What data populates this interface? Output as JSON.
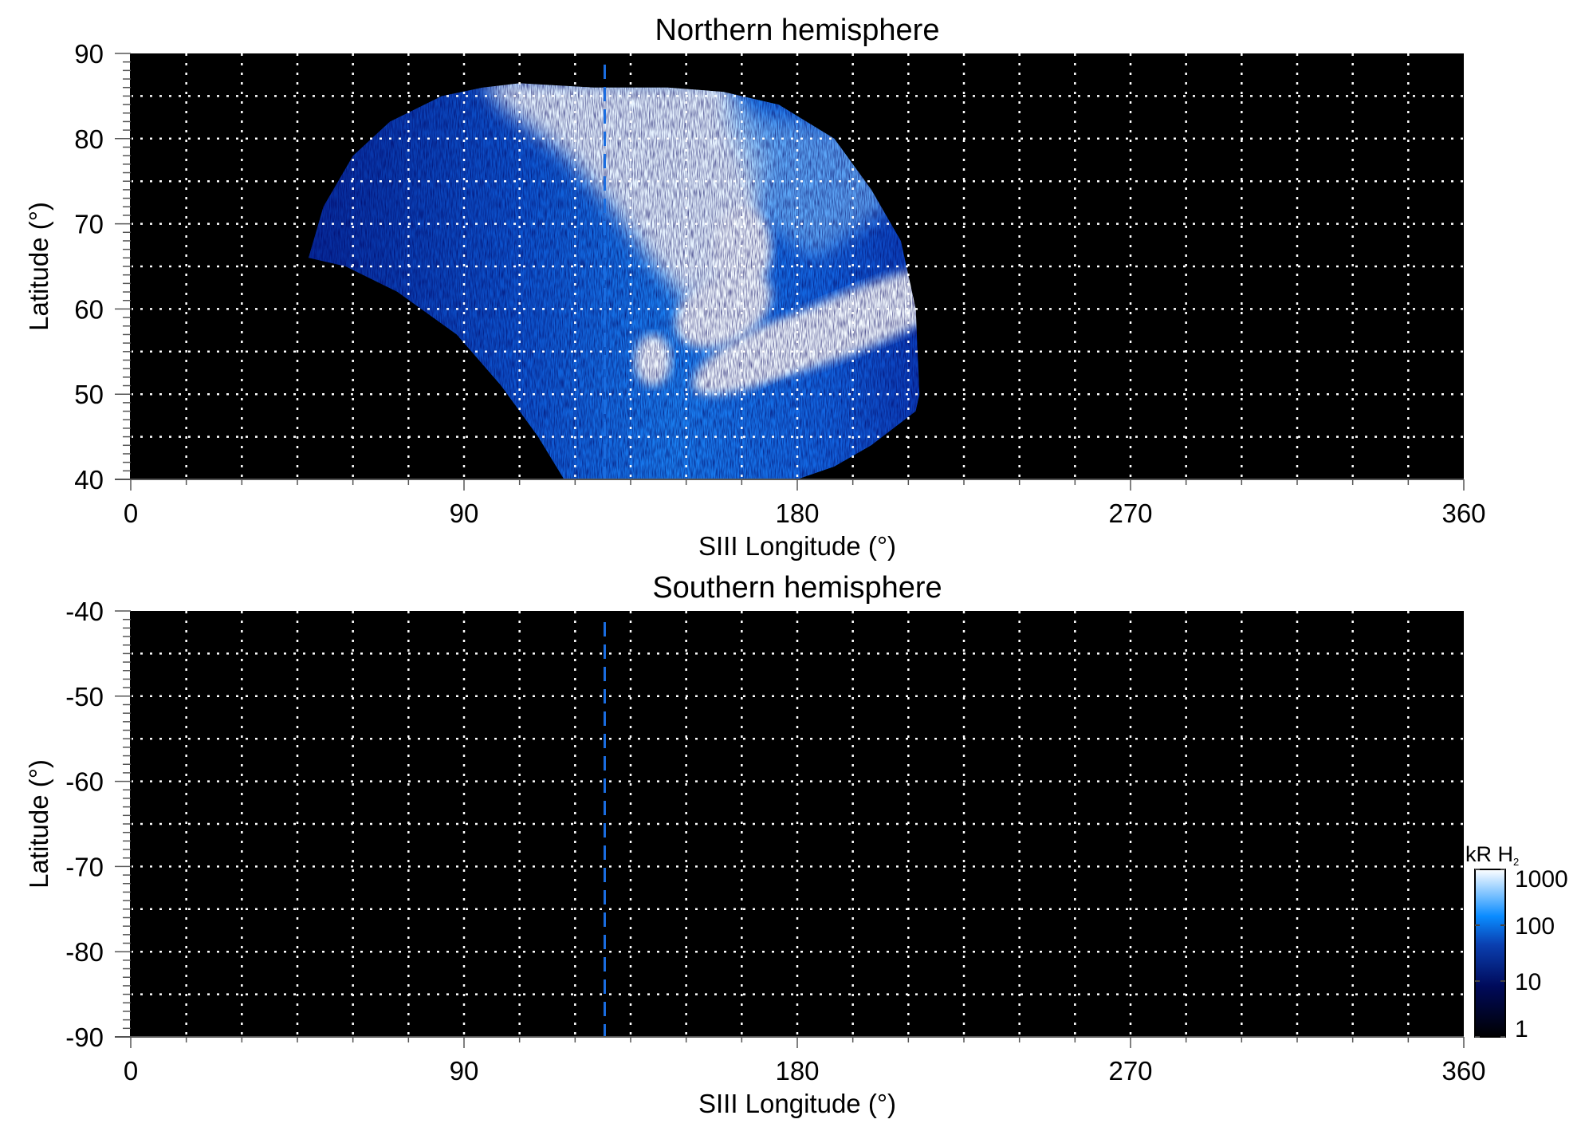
{
  "chart_data": [
    {
      "type": "heatmap",
      "title": "Northern hemisphere",
      "xlabel": "SIII Longitude (°)",
      "ylabel": "Latitude (°)",
      "xlim": [
        0,
        360
      ],
      "ylim": [
        40,
        90
      ],
      "xticks": [
        "0",
        "90",
        "180",
        "270",
        "360"
      ],
      "yticks": [
        "40",
        "50",
        "60",
        "70",
        "80",
        "90"
      ],
      "grid": true,
      "grid_spacing": {
        "longitude": 15,
        "latitude": 5
      },
      "background_color": "#000000",
      "marker_line": {
        "longitude": 128,
        "style": "dashed",
        "color": "#1a6de0"
      },
      "coverage_outline_lon_lat": [
        [
          48,
          66
        ],
        [
          52,
          72
        ],
        [
          60,
          78
        ],
        [
          70,
          82
        ],
        [
          84,
          85
        ],
        [
          95,
          86
        ],
        [
          105,
          86.5
        ],
        [
          125,
          86
        ],
        [
          145,
          86
        ],
        [
          160,
          85.5
        ],
        [
          175,
          84
        ],
        [
          190,
          80
        ],
        [
          200,
          74
        ],
        [
          208,
          68
        ],
        [
          212,
          60
        ],
        [
          213,
          50
        ],
        [
          212,
          48
        ],
        [
          200,
          44
        ],
        [
          190,
          41.5
        ],
        [
          180,
          40
        ],
        [
          117,
          40
        ],
        [
          110,
          45
        ],
        [
          100,
          51
        ],
        [
          88,
          57
        ],
        [
          72,
          62
        ],
        [
          58,
          65
        ],
        [
          48,
          66
        ]
      ],
      "bright_features_lon_lat": [
        [
          195,
          58
        ],
        [
          170,
          54
        ],
        [
          141,
          54
        ],
        [
          155,
          60
        ],
        [
          150,
          75
        ]
      ]
    },
    {
      "type": "heatmap",
      "title": "Southern hemisphere",
      "xlabel": "SIII Longitude (°)",
      "ylabel": "Latitude (°)",
      "xlim": [
        0,
        360
      ],
      "ylim": [
        -90,
        -40
      ],
      "xticks": [
        "0",
        "90",
        "180",
        "270",
        "360"
      ],
      "yticks": [
        "-40",
        "-50",
        "-60",
        "-70",
        "-80",
        "-90"
      ],
      "grid": true,
      "grid_spacing": {
        "longitude": 15,
        "latitude": 5
      },
      "background_color": "#000000",
      "marker_line": {
        "longitude": 128,
        "style": "dashed",
        "color": "#1a6de0"
      }
    }
  ],
  "colorbar": {
    "label": "kR H",
    "label_subscript": "2",
    "scale": "log",
    "range": [
      1,
      1000
    ],
    "ticks": [
      "1",
      "10",
      "100",
      "1000"
    ],
    "colors": [
      "#000000",
      "#000a5a",
      "#0a3fb0",
      "#0a8cff",
      "#ffffff"
    ]
  }
}
